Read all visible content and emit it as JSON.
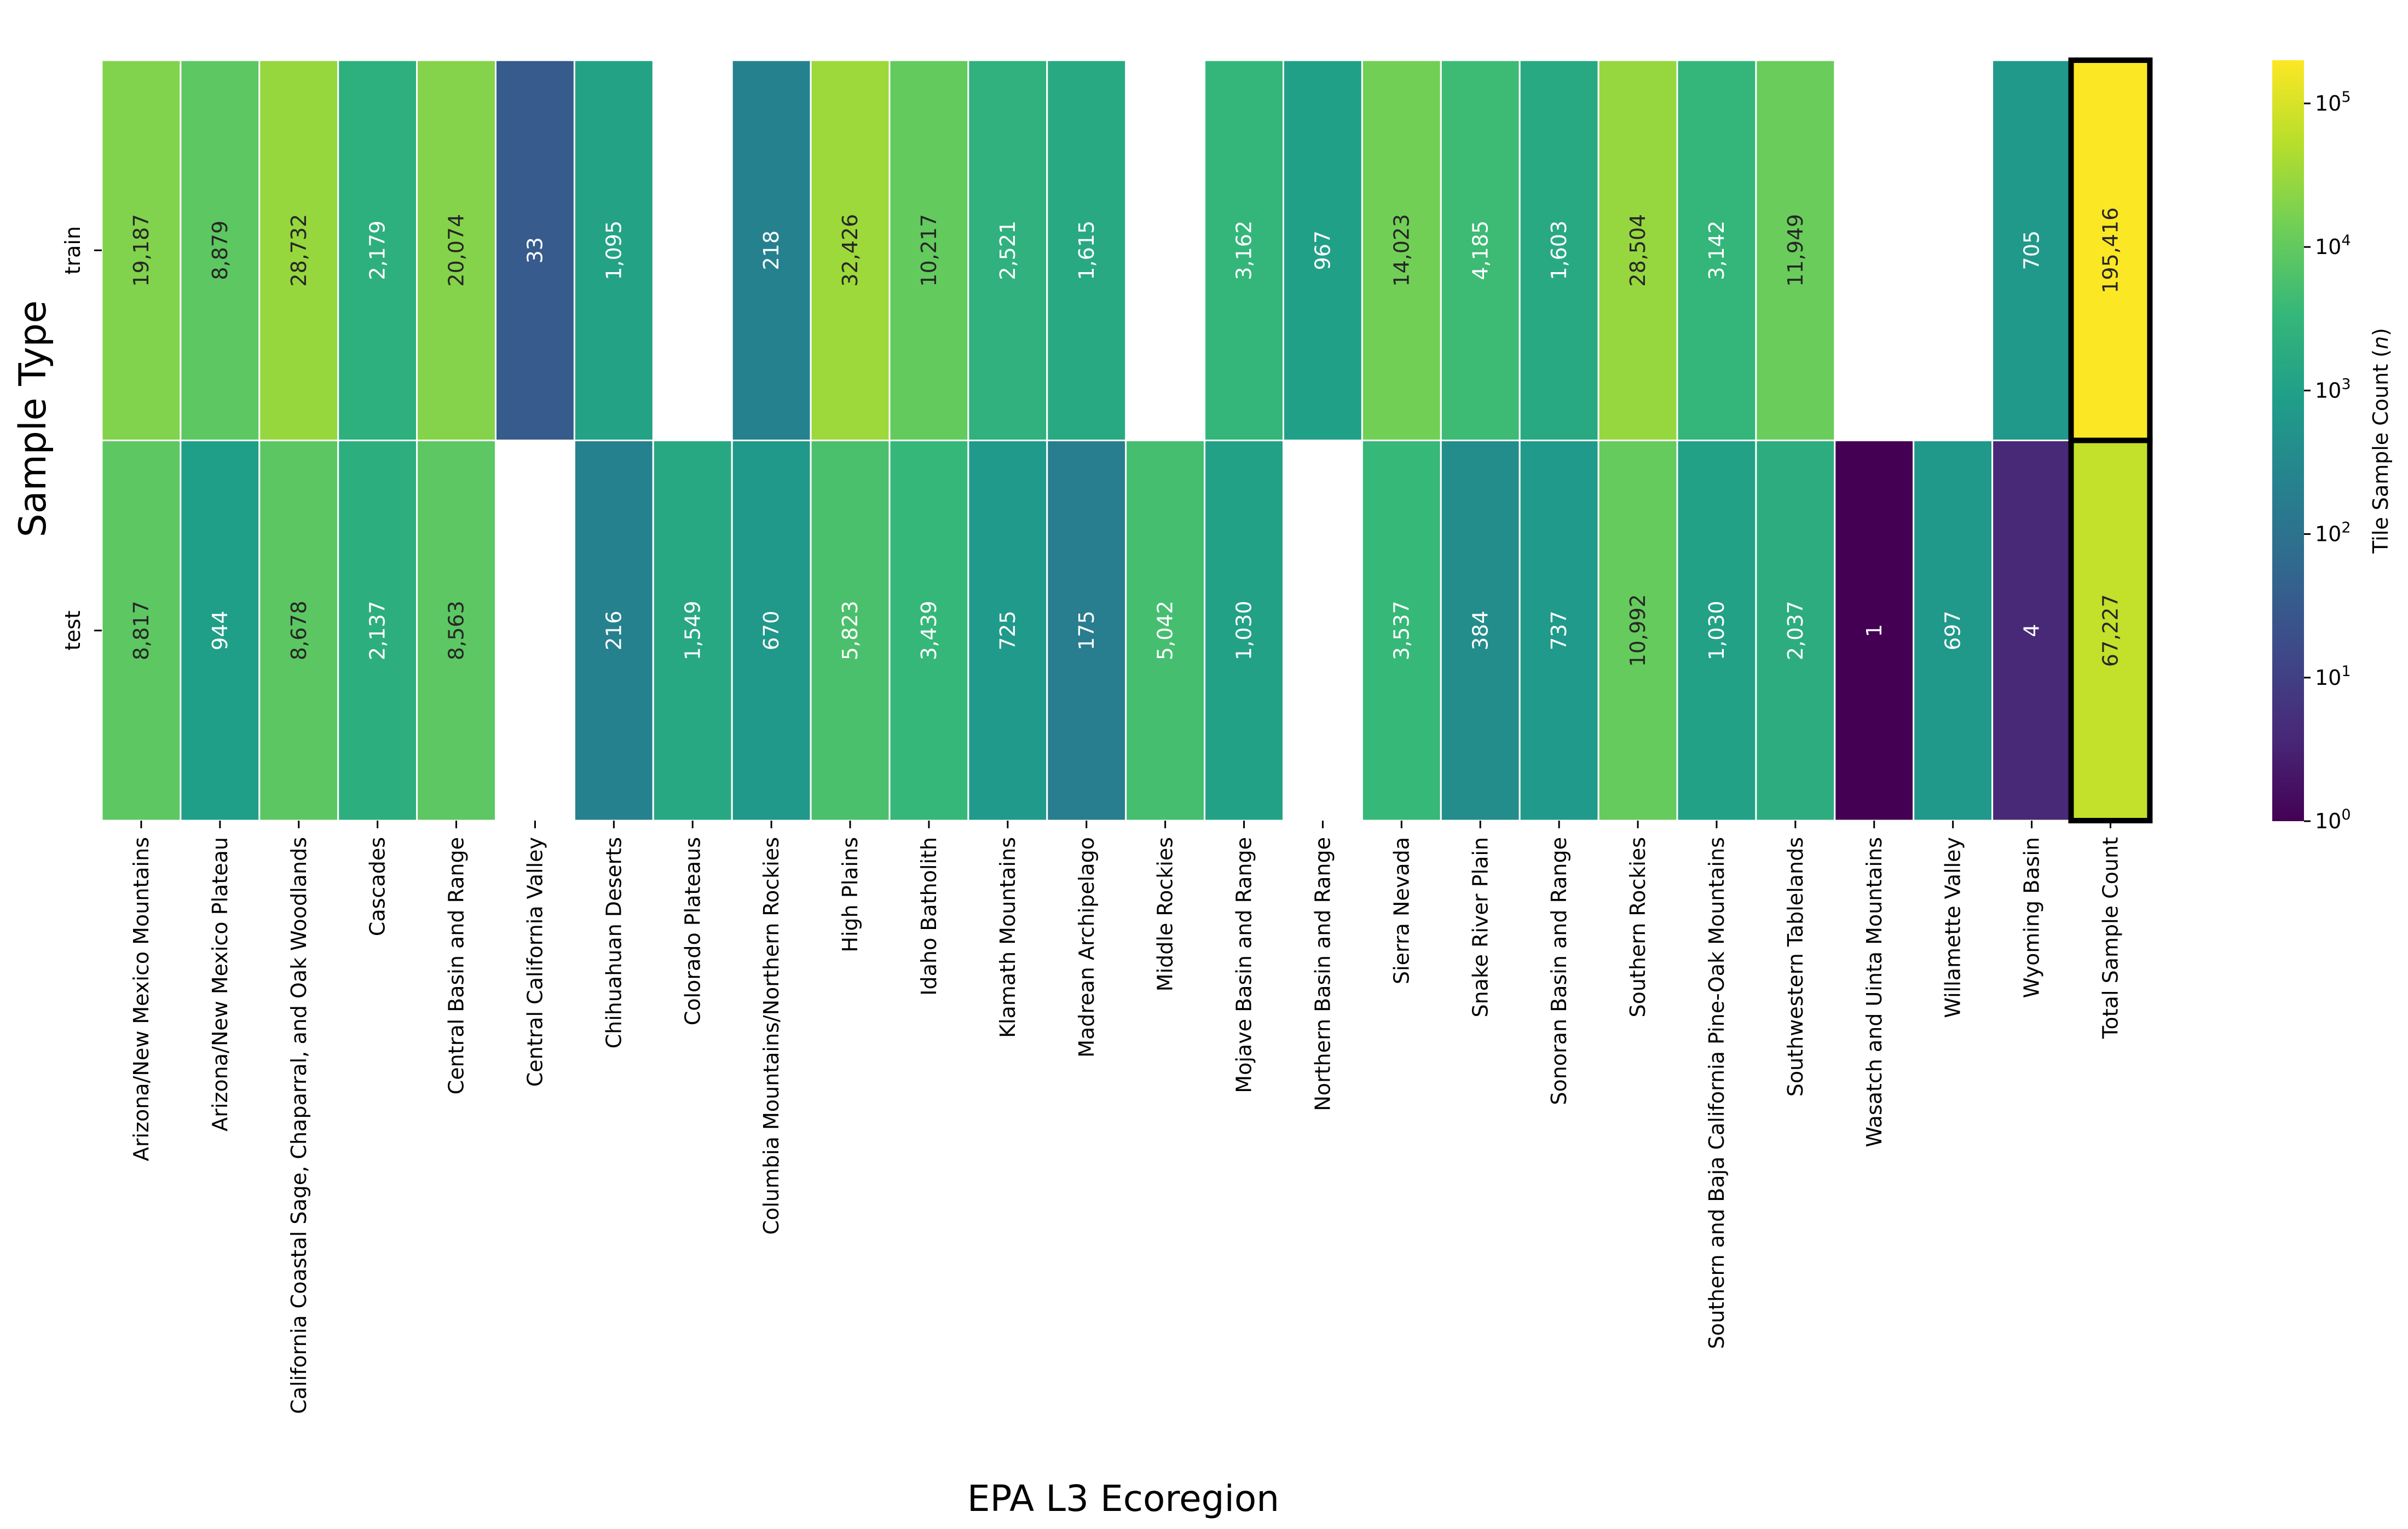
{
  "chart_data": {
    "type": "heatmap",
    "xlabel": "EPA L3 Ecoregion",
    "ylabel": "Sample Type",
    "rows": [
      "train",
      "test"
    ],
    "categories": [
      "Arizona/New Mexico Mountains",
      "Arizona/New Mexico Plateau",
      "California Coastal Sage, Chaparral, and Oak Woodlands",
      "Cascades",
      "Central Basin and Range",
      "Central California Valley",
      "Chihuahuan Deserts",
      "Colorado Plateaus",
      "Columbia Mountains/Northern Rockies",
      "High Plains",
      "Idaho Batholith",
      "Klamath Mountains",
      "Madrean Archipelago",
      "Middle Rockies",
      "Mojave Basin and Range",
      "Northern Basin and Range",
      "Sierra Nevada",
      "Snake River Plain",
      "Sonoran Basin and Range",
      "Southern Rockies",
      "Southern and Baja California Pine-Oak Mountains",
      "Southwestern Tablelands",
      "Wasatch and Uinta Mountains",
      "Willamette Valley",
      "Wyoming Basin",
      "Total Sample Count"
    ],
    "values": [
      [
        19187,
        8879,
        28732,
        2179,
        20074,
        33,
        1095,
        null,
        218,
        32426,
        10217,
        2521,
        1615,
        null,
        3162,
        967,
        14023,
        4185,
        1603,
        28504,
        3142,
        11949,
        null,
        null,
        705,
        195416
      ],
      [
        8817,
        944,
        8678,
        2137,
        8563,
        null,
        216,
        1549,
        670,
        5823,
        3439,
        725,
        175,
        5042,
        1030,
        null,
        3537,
        384,
        737,
        10992,
        1030,
        2037,
        1,
        697,
        4,
        67227
      ]
    ],
    "highlighted_column": "Total Sample Count",
    "colorscale": "viridis",
    "color_scale_type": "log",
    "clim": [
      1,
      200000
    ],
    "colorbar": {
      "label": "Tile Sample Count (n)",
      "ticks": [
        {
          "base": "10",
          "exp": "0"
        },
        {
          "base": "10",
          "exp": "1"
        },
        {
          "base": "10",
          "exp": "2"
        },
        {
          "base": "10",
          "exp": "3"
        },
        {
          "base": "10",
          "exp": "4"
        },
        {
          "base": "10",
          "exp": "5"
        }
      ]
    },
    "grid": false,
    "legend": "colorbar-right"
  }
}
